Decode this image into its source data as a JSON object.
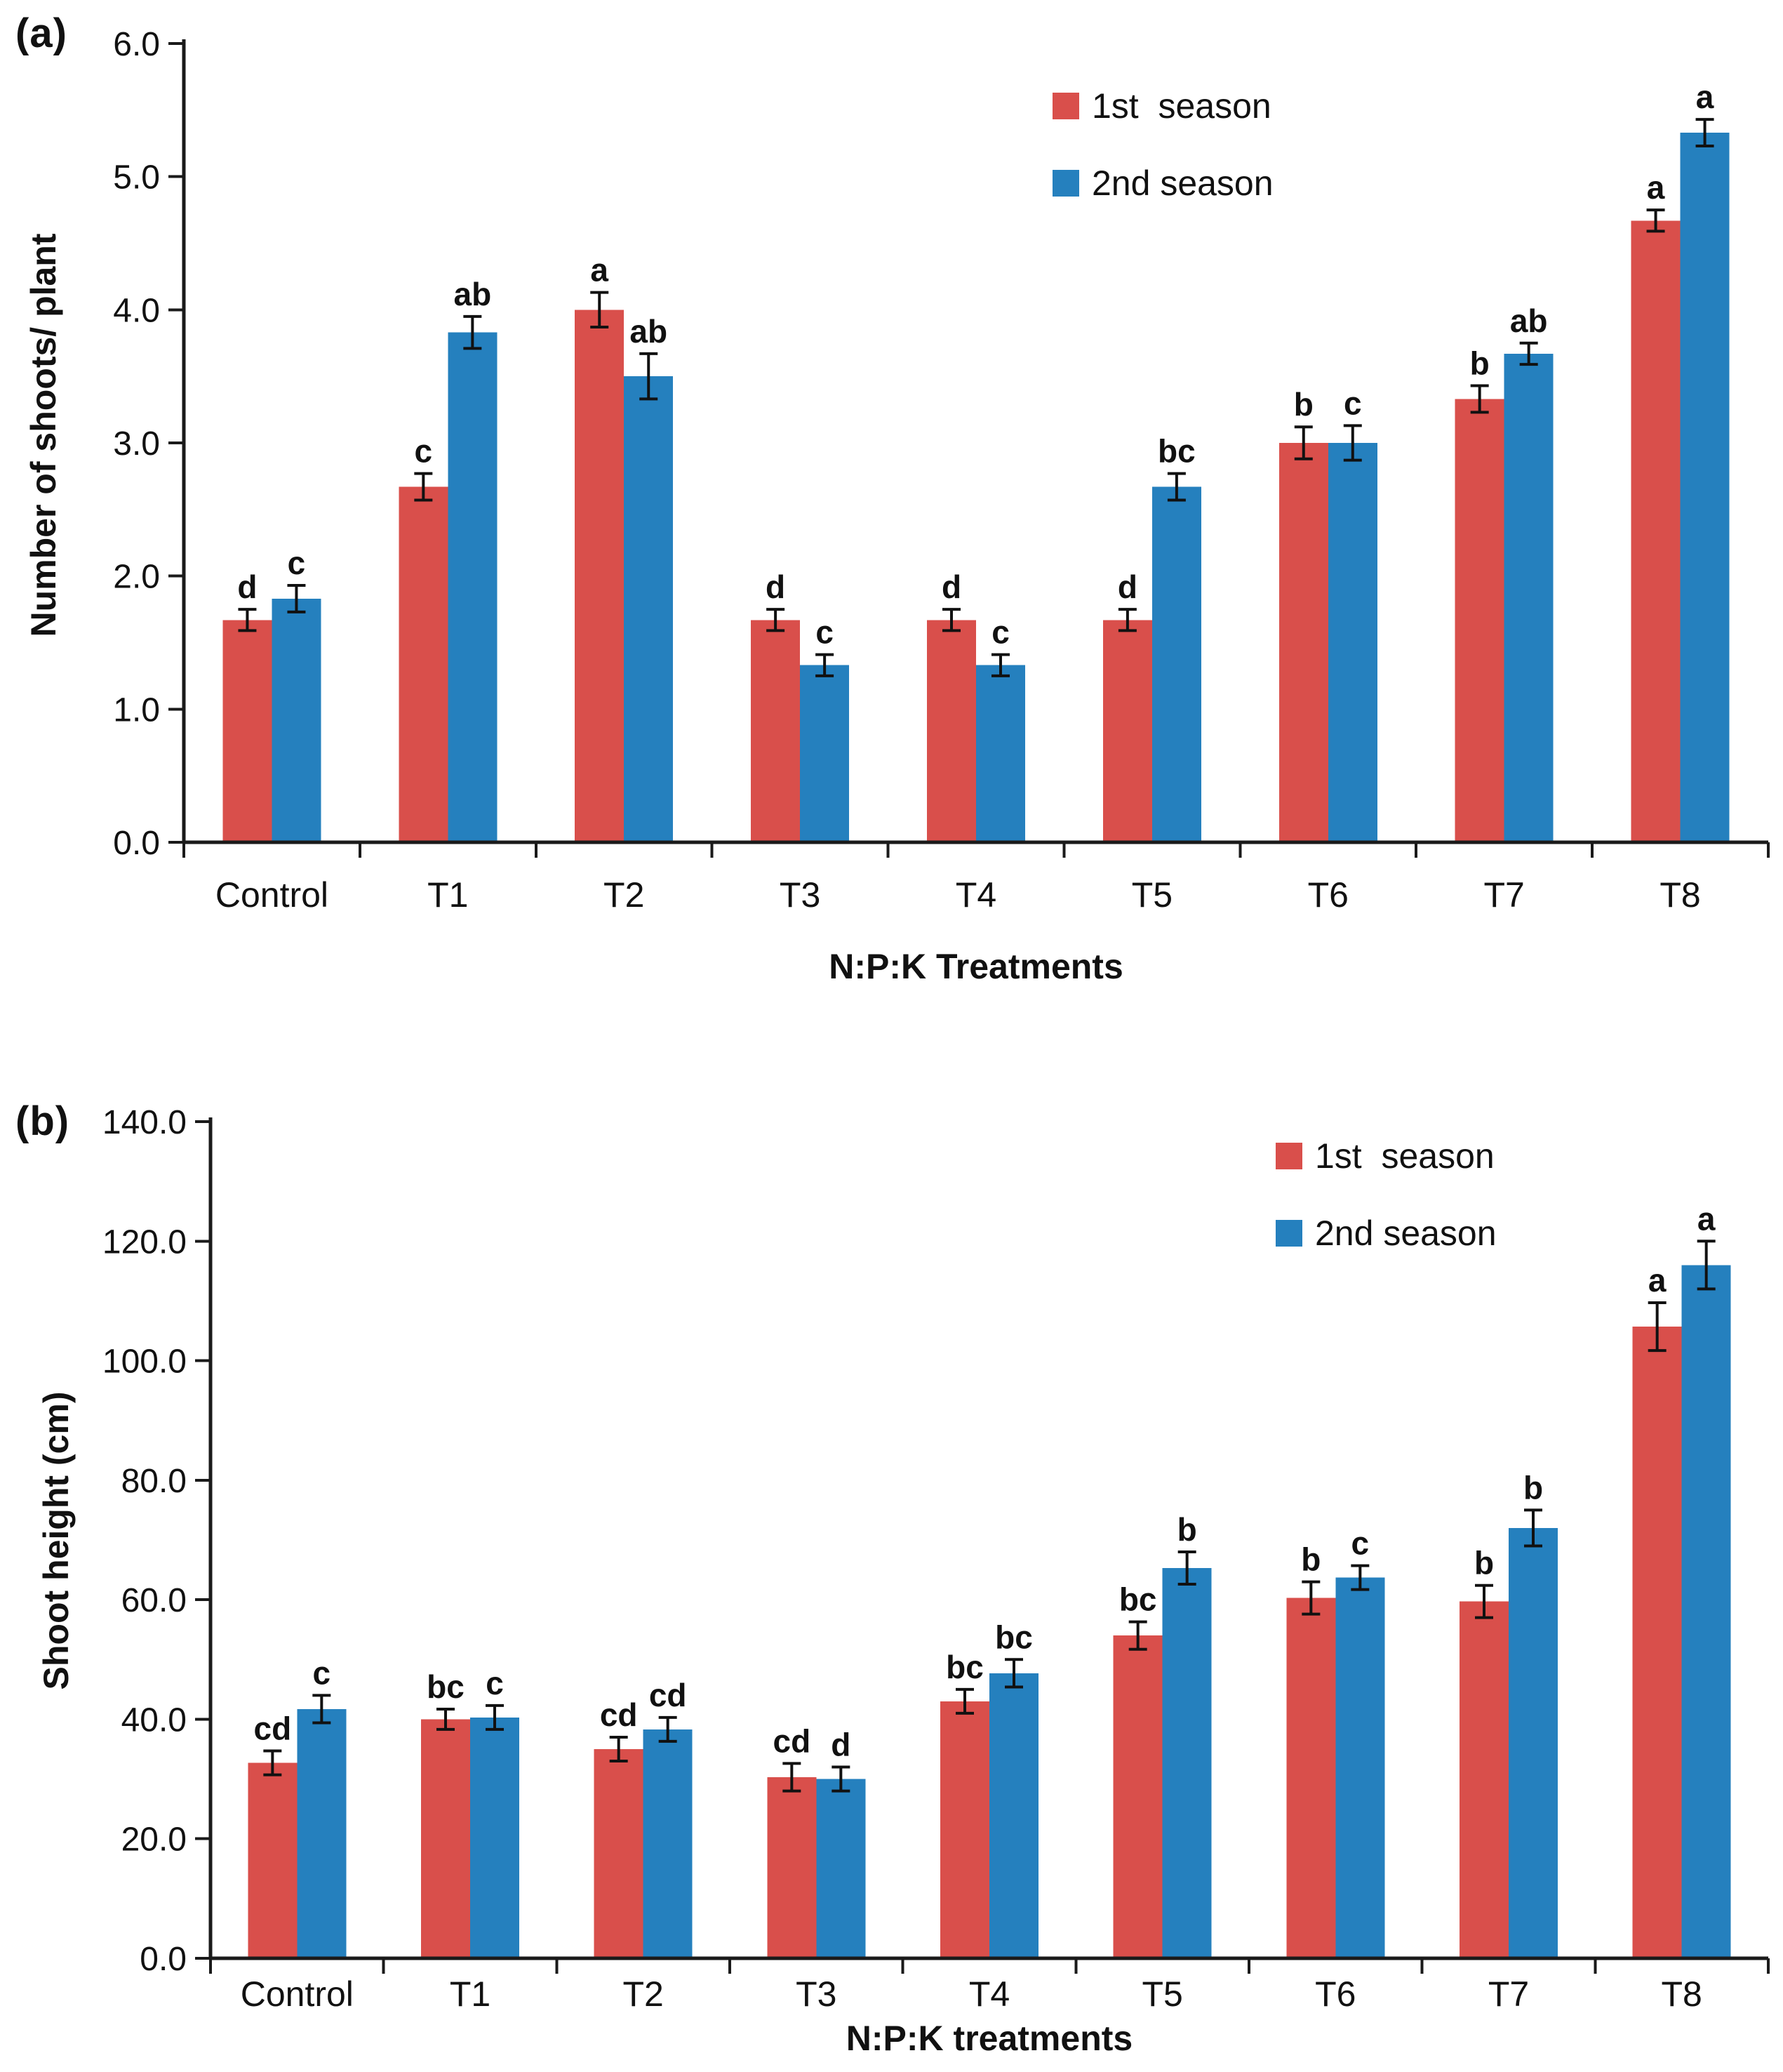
{
  "colors": {
    "season1": "#d94f4b",
    "season2": "#2580be",
    "axis": "#1a1a1a",
    "error_bar": "#111111"
  },
  "legend": {
    "items": [
      {
        "label": "1st  season",
        "color_key": "season1"
      },
      {
        "label": "2nd season",
        "color_key": "season2"
      }
    ]
  },
  "chart_data": [
    {
      "type": "bar",
      "panel_label": "(a)",
      "title": "",
      "categories": [
        "Control",
        "T1",
        "T2",
        "T3",
        "T4",
        "T5",
        "T6",
        "T7",
        "T8"
      ],
      "series": [
        {
          "name": "1st season",
          "color_key": "season1",
          "values": [
            1.67,
            2.67,
            4.0,
            1.67,
            1.67,
            1.67,
            3.0,
            3.33,
            4.67
          ],
          "errors": [
            0.08,
            0.1,
            0.13,
            0.08,
            0.08,
            0.08,
            0.12,
            0.1,
            0.08
          ],
          "letters": [
            "d",
            "c",
            "a",
            "d",
            "d",
            "d",
            "b",
            "b",
            "a"
          ]
        },
        {
          "name": "2nd season",
          "color_key": "season2",
          "values": [
            1.83,
            3.83,
            3.5,
            1.33,
            1.33,
            2.67,
            3.0,
            3.67,
            5.33
          ],
          "errors": [
            0.1,
            0.12,
            0.17,
            0.08,
            0.08,
            0.1,
            0.13,
            0.08,
            0.1
          ],
          "letters": [
            "c",
            "ab",
            "ab",
            "c",
            "c",
            "bc",
            "c",
            "ab",
            "a"
          ]
        }
      ],
      "xlabel": "N:P:K  Treatments",
      "ylabel": "Number of shoots/ plant",
      "ylim": [
        0,
        6
      ],
      "ytick_step": 1,
      "yticks": [
        "0.0",
        "1.0",
        "2.0",
        "3.0",
        "4.0",
        "5.0",
        "6.0"
      ],
      "grid": false,
      "legend_position": "top-right-inside"
    },
    {
      "type": "bar",
      "panel_label": "(b)",
      "title": "",
      "categories": [
        "Control",
        "T1",
        "T2",
        "T3",
        "T4",
        "T5",
        "T6",
        "T7",
        "T8"
      ],
      "series": [
        {
          "name": "1st season",
          "color_key": "season1",
          "values": [
            32.7,
            40.0,
            35.0,
            30.3,
            43.0,
            54.0,
            60.3,
            59.7,
            105.7
          ],
          "errors": [
            2.0,
            1.7,
            2.0,
            2.3,
            2.0,
            2.3,
            2.7,
            2.7,
            4.0
          ],
          "letters": [
            "cd",
            "bc",
            "cd",
            "cd",
            "bc",
            "bc",
            "b",
            "b",
            "a"
          ]
        },
        {
          "name": "2nd season",
          "color_key": "season2",
          "values": [
            41.7,
            40.3,
            38.3,
            30.0,
            47.7,
            65.3,
            63.7,
            72.0,
            116.0
          ],
          "errors": [
            2.3,
            2.0,
            2.0,
            2.0,
            2.3,
            2.7,
            2.0,
            3.0,
            4.0
          ],
          "letters": [
            "c",
            "c",
            "cd",
            "d",
            "bc",
            "b",
            "c",
            "b",
            "a"
          ]
        }
      ],
      "xlabel": "N:P:K treatments",
      "ylabel": "Shoot height (cm)",
      "ylim": [
        0,
        140
      ],
      "ytick_step": 20,
      "yticks": [
        "0.0",
        "20.0",
        "40.0",
        "60.0",
        "80.0",
        "100.0",
        "120.0",
        "140.0"
      ],
      "grid": false,
      "legend_position": "top-right-inside"
    }
  ]
}
